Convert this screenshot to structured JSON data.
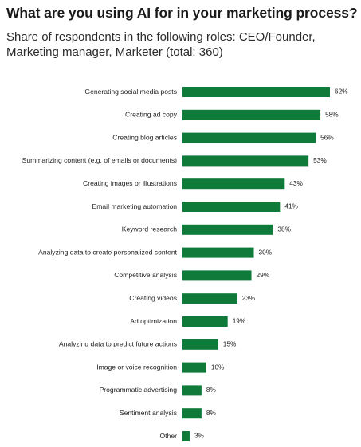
{
  "header": {
    "title": "What are you using AI for in your marketing process?",
    "subtitle": "Share of respondents in the following roles: CEO/Founder, Marketing manager, Marketer (total: 360)"
  },
  "colors": {
    "bar": "#0f7a3a",
    "text": "#222222"
  },
  "chart_data": {
    "type": "bar",
    "orientation": "horizontal",
    "categories": [
      "Generating social media posts",
      "Creating ad copy",
      "Creating blog articles",
      "Summarizing content (e.g. of emails or documents)",
      "Creating images or illustrations",
      "Email marketing automation",
      "Keyword research",
      "Analyzing data to create personalized content",
      "Competitive analysis",
      "Creating videos",
      "Ad optimization",
      "Analyzing data to predict future actions",
      "Image or voice recognition",
      "Programmatic advertising",
      "Sentiment analysis",
      "Other"
    ],
    "values": [
      62,
      58,
      56,
      53,
      43,
      41,
      38,
      30,
      29,
      23,
      19,
      15,
      10,
      8,
      8,
      3
    ],
    "value_labels": [
      "62%",
      "58%",
      "56%",
      "53%",
      "43%",
      "41%",
      "38%",
      "30%",
      "29%",
      "23%",
      "19%",
      "15%",
      "10%",
      "8%",
      "8%",
      "3%"
    ],
    "xlim": [
      0,
      62
    ],
    "grid": false,
    "legend": "none"
  }
}
